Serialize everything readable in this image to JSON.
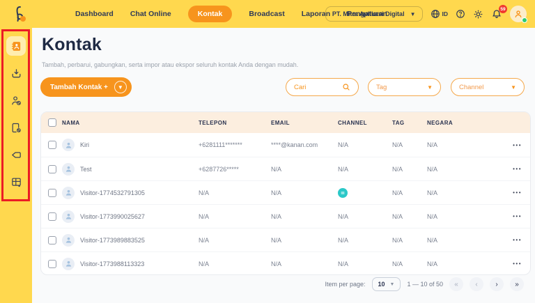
{
  "topnav": {
    "items": [
      {
        "label": "Dashboard",
        "active": false
      },
      {
        "label": "Chat Online",
        "active": false
      },
      {
        "label": "Kontak",
        "active": true
      },
      {
        "label": "Broadcast",
        "active": false
      },
      {
        "label": "Laporan",
        "active": false
      },
      {
        "label": "Pengaturan",
        "active": false
      }
    ],
    "company": "PT. Mitra Aplikasi Digital",
    "locale_label": "ID",
    "notification_count": "59"
  },
  "sidebar": {
    "items": [
      {
        "name": "contacts",
        "icon": "address-book-icon",
        "active": true
      },
      {
        "name": "import",
        "icon": "import-tray-icon",
        "active": false
      },
      {
        "name": "blocked-contacts",
        "icon": "user-block-icon",
        "active": false
      },
      {
        "name": "blocked-files",
        "icon": "file-block-icon",
        "active": false
      },
      {
        "name": "tags",
        "icon": "tag-icon",
        "active": false
      },
      {
        "name": "segments",
        "icon": "grid-table-icon",
        "active": false
      }
    ]
  },
  "page": {
    "title": "Kontak",
    "subtitle": "Tambah, perbarui, gabungkan, serta impor atau ekspor seluruh kontak Anda dengan mudah."
  },
  "toolbar": {
    "add_button_label": "Tambah Kontak +",
    "search_placeholder": "Cari",
    "tag_filter_label": "Tag",
    "channel_filter_label": "Channel"
  },
  "table": {
    "columns": [
      "NAMA",
      "TELEPON",
      "EMAIL",
      "CHANNEL",
      "TAG",
      "NEGARA"
    ],
    "rows": [
      {
        "name": "Kiri",
        "telepon": "+6281111*******",
        "email": "****@kanan.com",
        "channel": "N/A",
        "channel_icon": false,
        "tag": "N/A",
        "negara": "N/A"
      },
      {
        "name": "Test",
        "telepon": "+6287726*****",
        "email": "N/A",
        "channel": "N/A",
        "channel_icon": false,
        "tag": "N/A",
        "negara": "N/A"
      },
      {
        "name": "Visitor-1774532791305",
        "telepon": "N/A",
        "email": "N/A",
        "channel": "",
        "channel_icon": true,
        "tag": "N/A",
        "negara": "N/A"
      },
      {
        "name": "Visitor-1773990025627",
        "telepon": "N/A",
        "email": "N/A",
        "channel": "N/A",
        "channel_icon": false,
        "tag": "N/A",
        "negara": "N/A"
      },
      {
        "name": "Visitor-1773989883525",
        "telepon": "N/A",
        "email": "N/A",
        "channel": "N/A",
        "channel_icon": false,
        "tag": "N/A",
        "negara": "N/A"
      },
      {
        "name": "Visitor-1773988113323",
        "telepon": "N/A",
        "email": "N/A",
        "channel": "N/A",
        "channel_icon": false,
        "tag": "N/A",
        "negara": "N/A"
      }
    ]
  },
  "pagination": {
    "label": "Item per page:",
    "per_page": "10",
    "range": "1 — 10 of 50",
    "first": "«",
    "prev": "‹",
    "next": "›",
    "last": "»"
  },
  "colors": {
    "brand_yellow": "#FFD84E",
    "accent_orange": "#F7941D",
    "header_peach": "#FCEEDF",
    "channel_teal": "#2BC8C8",
    "badge_red": "#F0392F",
    "online_green": "#2ECC71",
    "annotation_red": "#EC1C24"
  }
}
